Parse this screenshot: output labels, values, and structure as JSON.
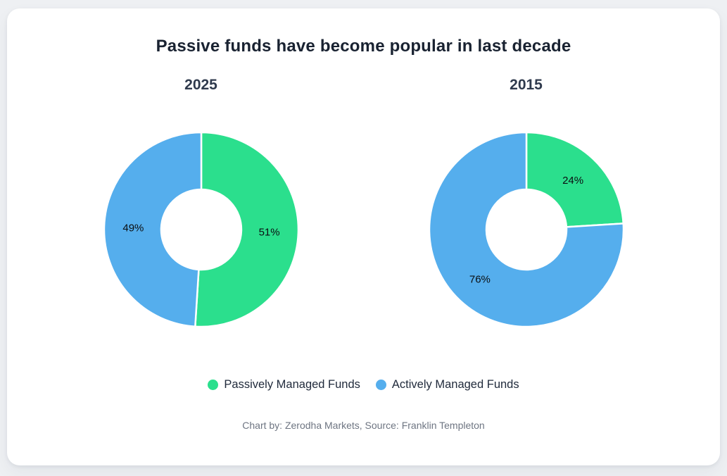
{
  "page": {
    "background_color": "#eef0f3",
    "card_color": "#ffffff"
  },
  "chart_data": {
    "type": "pie",
    "subtype": "donut",
    "title": "Passive funds have become popular in last decade",
    "categories": [
      "Passively Managed Funds",
      "Actively Managed Funds"
    ],
    "colors": [
      "#2bdf8d",
      "#55aeed"
    ],
    "charts": [
      {
        "label": "2025",
        "values": [
          51,
          49
        ],
        "data_labels": [
          "51%",
          "49%"
        ]
      },
      {
        "label": "2015",
        "values": [
          24,
          76
        ],
        "data_labels": [
          "24%",
          "76%"
        ]
      }
    ],
    "start_angle_deg": 0,
    "direction": "clockwise",
    "donut_hole_ratio": 0.41,
    "slice_gap_color": "#ffffff",
    "data_label_color": "#0b0e11",
    "legend_position": "bottom"
  },
  "legend": {
    "items": [
      {
        "label": "Passively Managed Funds",
        "color": "#2bdf8d"
      },
      {
        "label": "Actively Managed Funds",
        "color": "#55aeed"
      }
    ]
  },
  "footer": {
    "credit": "Chart by: Zerodha Markets, Source: Franklin Templeton"
  }
}
